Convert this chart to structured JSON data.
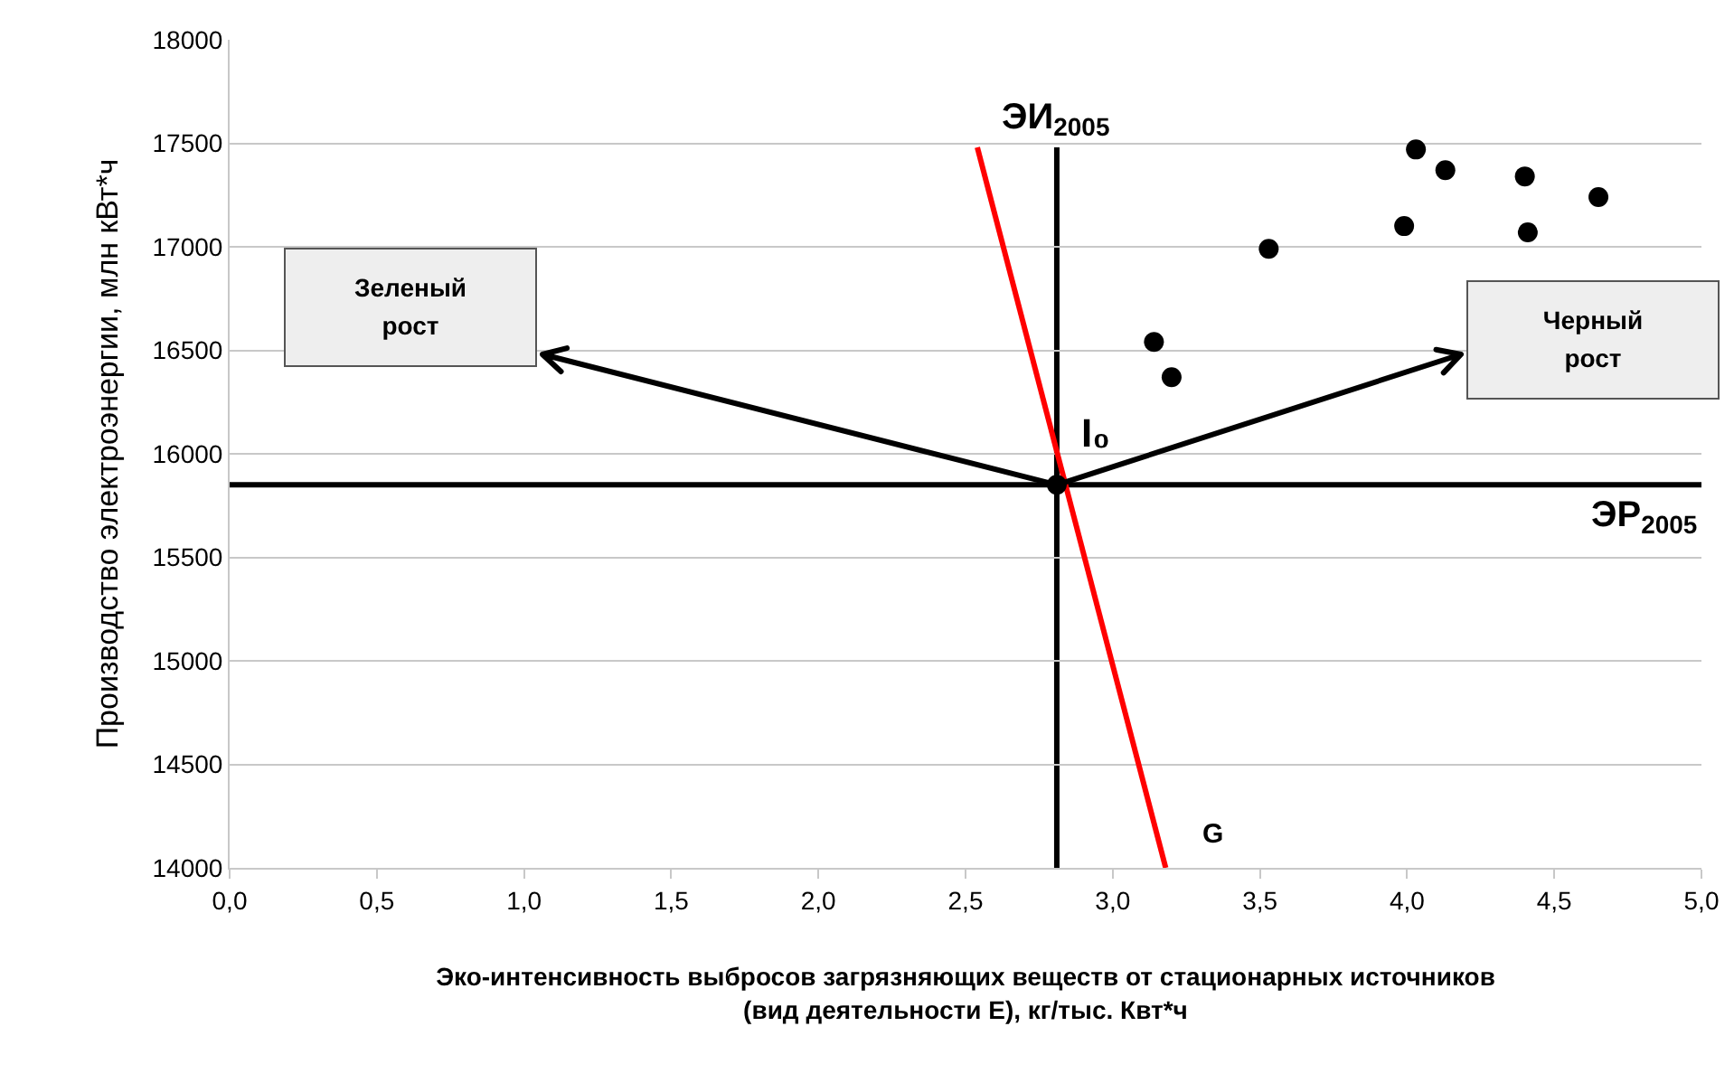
{
  "chart_data": {
    "type": "scatter",
    "xlabel": "Эко-интенсивность выбросов загрязняющих веществ от стационарных источников\n(вид деятельности Е), кг/тыс. Квт*ч",
    "ylabel": "Производство электроэнергии, млн кВт*ч",
    "xlim": [
      0,
      5
    ],
    "ylim": [
      14000,
      18000
    ],
    "xticks": [
      {
        "value": 0,
        "label": "0,0"
      },
      {
        "value": 0.5,
        "label": "0,5"
      },
      {
        "value": 1,
        "label": "1,0"
      },
      {
        "value": 1.5,
        "label": "1,5"
      },
      {
        "value": 2,
        "label": "2,0"
      },
      {
        "value": 2.5,
        "label": "2,5"
      },
      {
        "value": 3,
        "label": "3,0"
      },
      {
        "value": 3.5,
        "label": "3,5"
      },
      {
        "value": 4,
        "label": "4,0"
      },
      {
        "value": 4.5,
        "label": "4,5"
      },
      {
        "value": 5,
        "label": "5,0"
      }
    ],
    "yticks": [
      14000,
      14500,
      15000,
      15500,
      16000,
      16500,
      17000,
      17500,
      18000
    ],
    "grid": "y",
    "legend": false,
    "marker": "circle",
    "series": [
      {
        "color": "#000000",
        "x": [
          3.14,
          3.2,
          3.53,
          3.99,
          4.03,
          4.13,
          4.4,
          4.41,
          4.65
        ],
        "values": [
          16540,
          16370,
          16990,
          17100,
          17470,
          17370,
          17340,
          17070,
          17240
        ]
      },
      {
        "name": "I₀",
        "color": "#000000",
        "x": [
          2.81
        ],
        "values": [
          15850
        ]
      },
      {
        "name": "G",
        "type": "line",
        "color": "#ff0000",
        "marker": "none",
        "x": [
          2.54,
          3.18
        ],
        "values": [
          17480,
          14000
        ]
      }
    ],
    "ref_lines": [
      {
        "axis": "x",
        "value": 2.81,
        "label": "ЭИ$_{2005}$",
        "color": "#000000"
      },
      {
        "axis": "y",
        "value": 15850,
        "label": "ЭР$_{2005}$",
        "color": "#000000"
      }
    ],
    "annotations": [
      "Зеленый\nрост",
      "Черный\nрост"
    ]
  }
}
